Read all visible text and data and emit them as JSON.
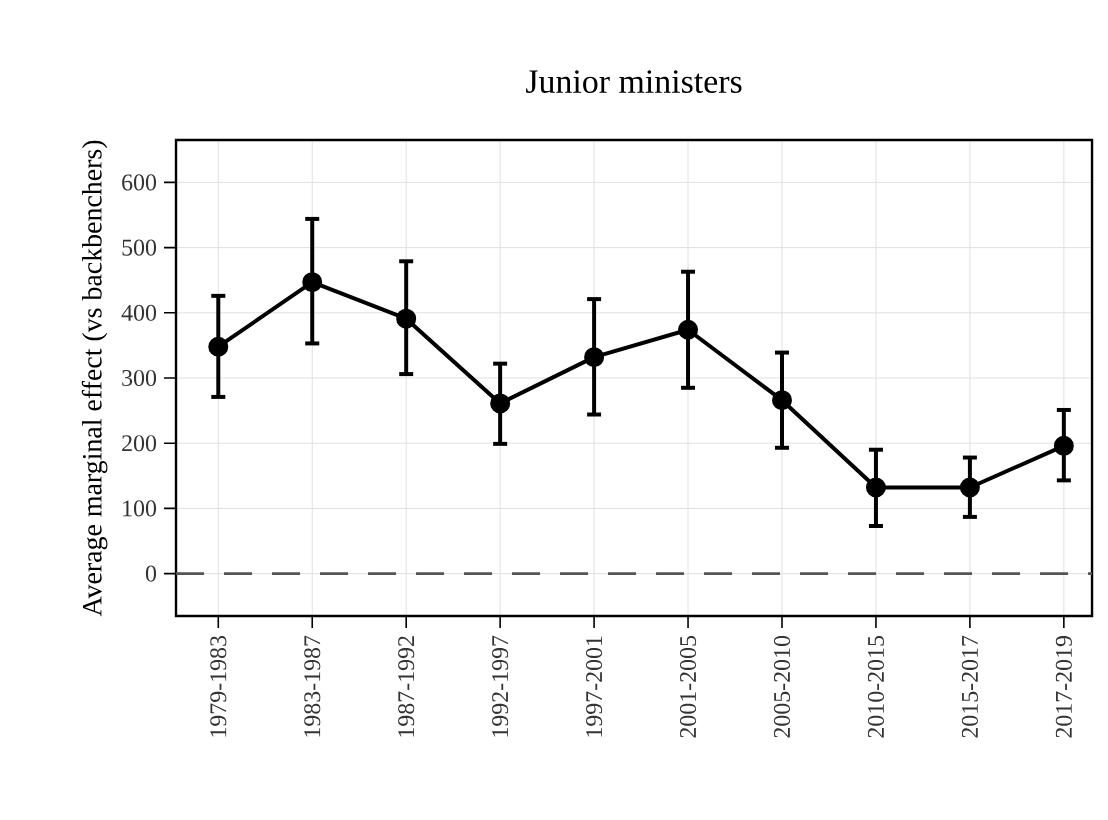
{
  "chart_data": {
    "type": "line",
    "title": "Junior ministers",
    "ylabel": "Average marginal effect (vs backbenchers)",
    "categories": [
      "1979-1983",
      "1983-1987",
      "1987-1992",
      "1992-1997",
      "1997-2001",
      "2001-2005",
      "2005-2010",
      "2010-2015",
      "2015-2017",
      "2017-2019"
    ],
    "series": [
      {
        "color": "#000000",
        "values": [
          348,
          447,
          391,
          261,
          332,
          374,
          266,
          132,
          132,
          196
        ],
        "errors": [
          [
            271,
            426
          ],
          [
            353,
            544
          ],
          [
            306,
            479
          ],
          [
            199,
            322
          ],
          [
            244,
            421
          ],
          [
            285,
            463
          ],
          [
            193,
            339
          ],
          [
            73,
            190
          ],
          [
            87,
            178
          ],
          [
            143,
            251
          ]
        ]
      }
    ],
    "ylim": [
      -65,
      665
    ],
    "yticks": [
      0,
      100,
      200,
      300,
      400,
      500,
      600
    ],
    "grid": true,
    "marker": "circle",
    "line_style": "solid",
    "ref_lines": [
      {
        "axis": "y",
        "value": 0,
        "color": "#555555",
        "line_style": "dashed"
      }
    ]
  }
}
